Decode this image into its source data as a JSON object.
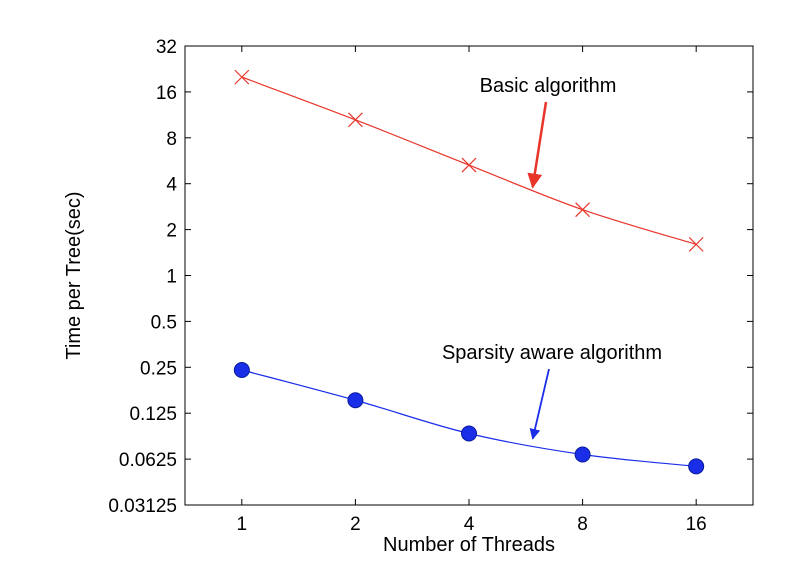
{
  "chart_data": {
    "type": "line",
    "title": "",
    "xlabel": "Number of Threads",
    "ylabel": "Time per Tree(sec)",
    "x_scale": "log2",
    "y_scale": "log2",
    "xlim": [
      0.707,
      22.63
    ],
    "ylim": [
      0.03125,
      32
    ],
    "x_ticks": [
      1,
      2,
      4,
      8,
      16
    ],
    "x_tick_labels": [
      "1",
      "2",
      "4",
      "8",
      "16"
    ],
    "y_ticks": [
      0.03125,
      0.0625,
      0.125,
      0.25,
      0.5,
      1,
      2,
      4,
      8,
      16,
      32
    ],
    "y_tick_labels": [
      "0.03125",
      "0.0625",
      "0.125",
      "0.25",
      "0.5",
      "1",
      "2",
      "4",
      "8",
      "16",
      "32"
    ],
    "grid": false,
    "x": [
      1,
      2,
      4,
      8,
      16
    ],
    "series": [
      {
        "values": [
          20,
          10.5,
          5.3,
          2.7,
          1.6
        ],
        "color": "#e8352a",
        "marker": "x"
      },
      {
        "values": [
          0.24,
          0.152,
          0.092,
          0.067,
          0.056
        ],
        "color": "#1a2ee8",
        "marker": "circle"
      }
    ],
    "annotations": [
      {
        "text": "Basic algorithm",
        "color": "#e8352a",
        "arrow_target": [
          5.9,
          3.8
        ]
      },
      {
        "text": "Sparsity aware algorithm",
        "color": "#1a2ee8",
        "arrow_target": [
          5.9,
          0.085
        ]
      }
    ]
  }
}
